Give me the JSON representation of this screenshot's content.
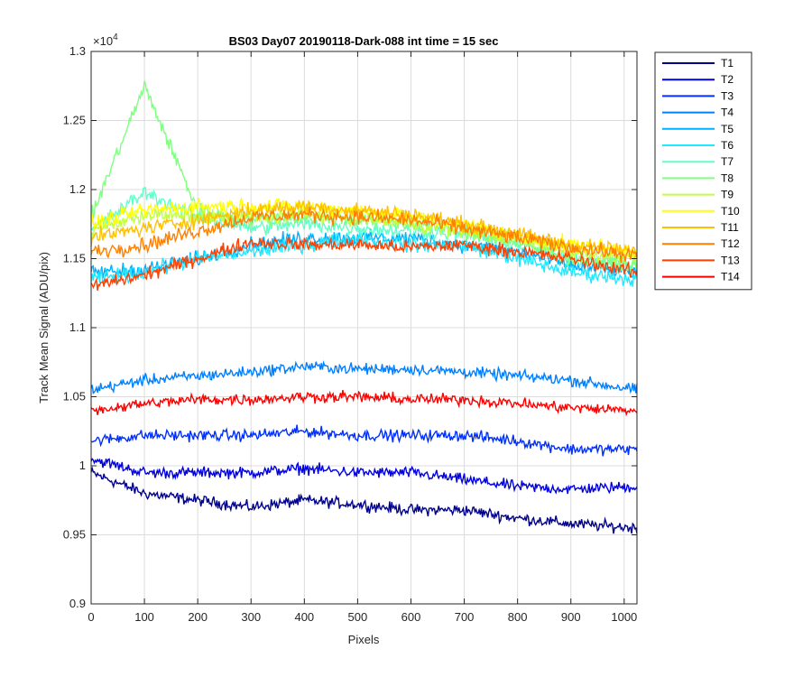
{
  "chart_data": {
    "type": "line",
    "title": "BS03 Day07 20190118-Dark-088 int time = 15 sec",
    "xlabel": "Pixels",
    "ylabel": "Track Mean Signal (ADU/pix)",
    "y_exponent": "×10",
    "y_exponent_power": "4",
    "xlim": [
      0,
      1024
    ],
    "ylim": [
      0.9,
      1.3
    ],
    "y_scale_factor": 10000,
    "grid": true,
    "legend_position": "outside-top-right",
    "xticks": [
      0,
      100,
      200,
      300,
      400,
      500,
      600,
      700,
      800,
      900,
      1000
    ],
    "xtick_labels": [
      "0",
      "100",
      "200",
      "300",
      "400",
      "500",
      "600",
      "700",
      "800",
      "900",
      "1000"
    ],
    "yticks": [
      0.9,
      0.95,
      1.0,
      1.05,
      1.1,
      1.15,
      1.2,
      1.25,
      1.3
    ],
    "ytick_labels": [
      "0.9",
      "0.95",
      "1",
      "1.05",
      "1.1",
      "1.15",
      "1.2",
      "1.25",
      "1.3"
    ],
    "x_key": [
      0,
      100,
      200,
      300,
      400,
      500,
      600,
      700,
      800,
      900,
      1024
    ],
    "series": [
      {
        "name": "T1",
        "color": "#00008f",
        "noise": 0.006,
        "values": [
          0.995,
          0.98,
          0.975,
          0.97,
          0.975,
          0.972,
          0.968,
          0.968,
          0.962,
          0.958,
          0.955
        ]
      },
      {
        "name": "T2",
        "color": "#0000e0",
        "noise": 0.006,
        "values": [
          1.005,
          0.995,
          0.995,
          0.995,
          0.998,
          0.995,
          0.995,
          0.99,
          0.985,
          0.983,
          0.985
        ]
      },
      {
        "name": "T3",
        "color": "#0030ff",
        "noise": 0.006,
        "values": [
          1.018,
          1.022,
          1.022,
          1.022,
          1.025,
          1.022,
          1.022,
          1.022,
          1.018,
          1.012,
          1.012
        ]
      },
      {
        "name": "T4",
        "color": "#0080ff",
        "noise": 0.006,
        "values": [
          1.055,
          1.062,
          1.065,
          1.068,
          1.072,
          1.07,
          1.07,
          1.068,
          1.065,
          1.062,
          1.055
        ]
      },
      {
        "name": "T5",
        "color": "#00b0ff",
        "noise": 0.008,
        "values": [
          1.14,
          1.142,
          1.15,
          1.16,
          1.165,
          1.165,
          1.165,
          1.16,
          1.155,
          1.145,
          1.14
        ]
      },
      {
        "name": "T6",
        "color": "#20e8ff",
        "noise": 0.008,
        "values": [
          1.135,
          1.14,
          1.15,
          1.155,
          1.16,
          1.165,
          1.16,
          1.16,
          1.15,
          1.14,
          1.135
        ]
      },
      {
        "name": "T7",
        "color": "#60ffc8",
        "noise": 0.008,
        "values": [
          1.17,
          1.198,
          1.18,
          1.172,
          1.175,
          1.172,
          1.17,
          1.168,
          1.16,
          1.15,
          1.145
        ]
      },
      {
        "name": "T8",
        "color": "#80ff80",
        "noise": 0.008,
        "values": [
          1.18,
          1.275,
          1.185,
          1.178,
          1.18,
          1.178,
          1.175,
          1.17,
          1.162,
          1.15,
          1.145
        ]
      },
      {
        "name": "T9",
        "color": "#c0ff40",
        "noise": 0.008,
        "values": [
          1.17,
          1.182,
          1.18,
          1.18,
          1.182,
          1.18,
          1.175,
          1.17,
          1.165,
          1.155,
          1.15
        ]
      },
      {
        "name": "T10",
        "color": "#ffff00",
        "noise": 0.008,
        "values": [
          1.175,
          1.185,
          1.188,
          1.188,
          1.188,
          1.185,
          1.18,
          1.175,
          1.165,
          1.16,
          1.155
        ]
      },
      {
        "name": "T11",
        "color": "#ffc000",
        "noise": 0.008,
        "values": [
          1.165,
          1.172,
          1.178,
          1.185,
          1.188,
          1.185,
          1.182,
          1.175,
          1.168,
          1.16,
          1.155
        ]
      },
      {
        "name": "T12",
        "color": "#ff8000",
        "noise": 0.008,
        "values": [
          1.155,
          1.16,
          1.17,
          1.18,
          1.182,
          1.18,
          1.178,
          1.172,
          1.165,
          1.158,
          1.152
        ]
      },
      {
        "name": "T13",
        "color": "#ff4000",
        "noise": 0.007,
        "values": [
          1.13,
          1.138,
          1.15,
          1.162,
          1.16,
          1.16,
          1.158,
          1.16,
          1.155,
          1.15,
          1.14
        ]
      },
      {
        "name": "T14",
        "color": "#ff0000",
        "noise": 0.006,
        "values": [
          1.04,
          1.045,
          1.048,
          1.048,
          1.05,
          1.05,
          1.048,
          1.048,
          1.045,
          1.042,
          1.04
        ]
      }
    ]
  }
}
